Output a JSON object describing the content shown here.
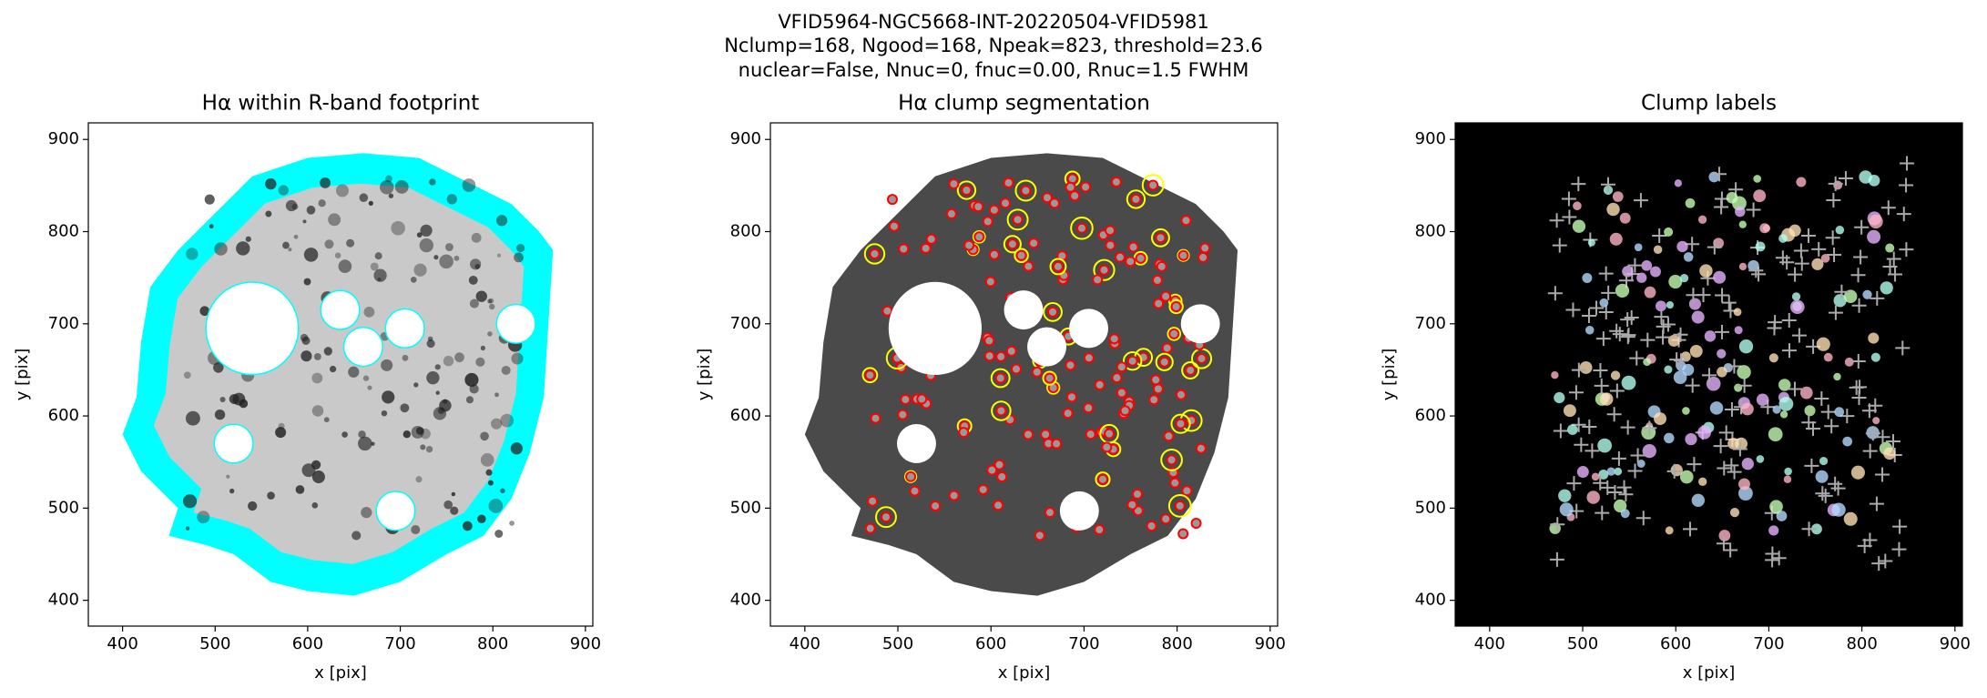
{
  "title": [
    "VFID5964-NGC5668-INT-20220504-VFID5981",
    "Nclump=168, Ngood=168, Npeak=823, threshold=23.6",
    "nuclear=False, Nnuc=0, fnuc=0.00, Rnuc=1.5 FWHM"
  ],
  "chart_data": [
    {
      "type": "image",
      "title": "Hα within R-band footprint",
      "xlabel": "x [pix]",
      "ylabel": "y [pix]",
      "xlim": [
        363,
        908
      ],
      "ylim": [
        372,
        918
      ],
      "xticks": [
        400,
        500,
        600,
        700,
        800,
        900
      ],
      "yticks": [
        400,
        500,
        600,
        700,
        800,
        900
      ]
    },
    {
      "type": "image",
      "title": "Hα clump segmentation",
      "xlabel": "x [pix]",
      "ylabel": "y [pix]",
      "xlim": [
        363,
        908
      ],
      "ylim": [
        372,
        918
      ],
      "xticks": [
        400,
        500,
        600,
        700,
        800,
        900
      ],
      "yticks": [
        400,
        500,
        600,
        700,
        800,
        900
      ]
    },
    {
      "type": "image",
      "title": "Clump labels",
      "xlabel": "x [pix]",
      "ylabel": "y [pix]",
      "xlim": [
        363,
        908
      ],
      "ylim": [
        372,
        918
      ],
      "xticks": [
        400,
        500,
        600,
        700,
        800,
        900
      ],
      "yticks": [
        400,
        500,
        600,
        700,
        800,
        900
      ]
    }
  ]
}
